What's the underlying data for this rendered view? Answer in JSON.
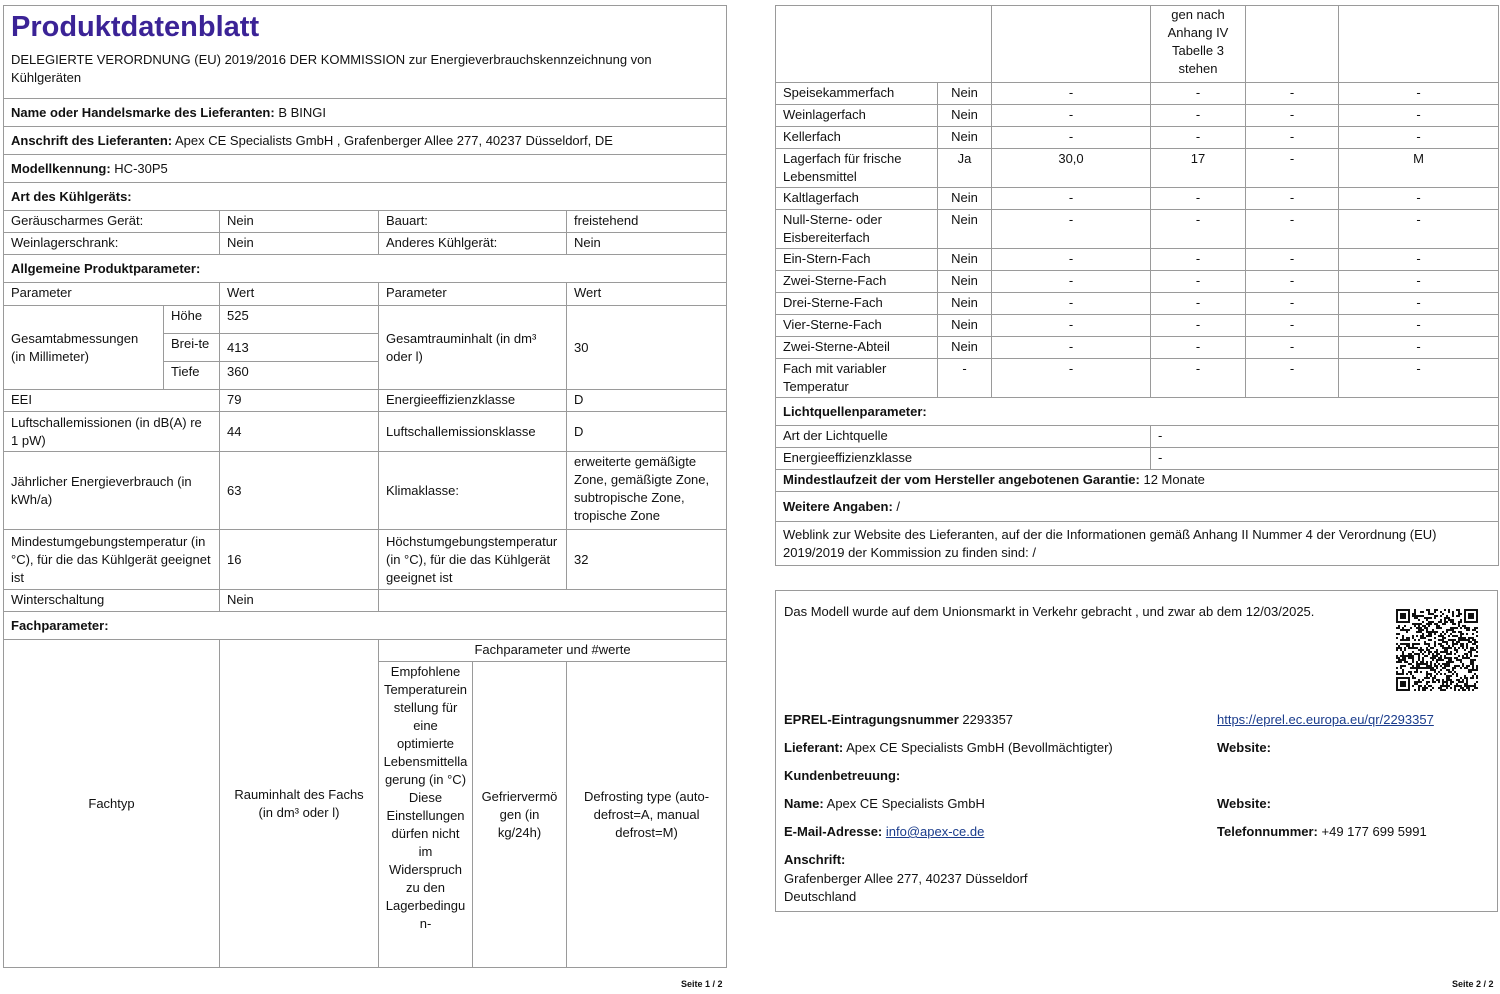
{
  "page1": {
    "title": "Produktdatenblatt",
    "regulation": "DELEGIERTE VERORDNUNG (EU) 2019/2016 DER KOMMISSION zur Energieverbrauchskennzeichnung von Kühlgeräten",
    "supplier_name": {
      "label": "Name oder Handelsmarke des Lieferanten:",
      "value": "B BINGI"
    },
    "supplier_address": {
      "label": "Anschrift des Lieferanten:",
      "value": "Apex CE Specialists GmbH , Grafenberger Allee 277, 40237 Düsseldorf, DE"
    },
    "model": {
      "label": "Modellkennung:",
      "value": "HC-30P5"
    },
    "device_type": {
      "heading": "Art des Kühlgeräts:",
      "rows": [
        [
          "Geräuscharmes Gerät:",
          "Nein",
          "Bauart:",
          "freistehend"
        ],
        [
          "Weinlagerschrank:",
          "Nein",
          "Anderes Kühlgerät:",
          "Nein"
        ]
      ]
    },
    "general": {
      "heading": "Allgemeine Produktparameter:",
      "header": [
        "Parameter",
        "Wert",
        "Parameter",
        "Wert"
      ],
      "dimensions": {
        "label": "Gesamtabmessungen (in Millimeter)",
        "rows": [
          [
            "Höhe",
            "525"
          ],
          [
            "Brei-te",
            "413"
          ],
          [
            "Tiefe",
            "360"
          ]
        ]
      },
      "volume": {
        "label": "Gesamtrauminhalt (in dm³ oder l)",
        "value": "30"
      },
      "rows": [
        [
          "EEI",
          "79",
          "Energieeffizienzklasse",
          "D"
        ],
        [
          "Luftschallemissionen (in dB(A) re 1 pW)",
          "44",
          "Luftschallemissionsklasse",
          "D"
        ],
        [
          "Jährlicher Energieverbrauch (in kWh/a)",
          "63",
          "Klimaklasse:",
          "erweiterte gemäßigte Zone, gemäßigte Zone, subtropische Zone, tropische Zone"
        ],
        [
          "Mindestumgebungstemperatur (in °C), für die das Kühlgerät geeignet ist",
          "16",
          "Höchstumgebungstemperatur (in °C), für die das Kühlgerät geeignet ist",
          "32"
        ]
      ],
      "winter": [
        "Winterschaltung",
        "Nein"
      ]
    },
    "compartments": {
      "heading": "Fachparameter:",
      "group": "Fachparameter und #werte",
      "type": "Fachtyp",
      "volume": "Rauminhalt des Fachs (in dm³ oder l)",
      "temperature": [
        "Empfohlene Temperatureinstellung für eine optimierte Lebensmittellagerung (in °C)",
        "Diese Einstellungen dürfen nicht im Widerspruch zu den Lagerbedingun-"
      ],
      "freezing": "Gefriervermögen (in kg/24h)",
      "defrost": "Defrosting type (auto-defrost=A, manual defrost=M)"
    },
    "footer": "Seite 1 / 2"
  },
  "page2": {
    "temperature_continued": "gen nach Anhang IV Tabelle 3 stehen",
    "compartments": [
      [
        "Speisekammerfach",
        "Nein",
        "-",
        "-",
        "-",
        "-"
      ],
      [
        "Weinlagerfach",
        "Nein",
        "-",
        "-",
        "-",
        "-"
      ],
      [
        "Kellerfach",
        "Nein",
        "-",
        "-",
        "-",
        "-"
      ],
      [
        "Lagerfach für frische Lebensmittel",
        "Ja",
        "30,0",
        "17",
        "-",
        "M"
      ],
      [
        "Kaltlagerfach",
        "Nein",
        "-",
        "-",
        "-",
        "-"
      ],
      [
        "Null-Sterne- oder Eisbereiterfach",
        "Nein",
        "-",
        "-",
        "-",
        "-"
      ],
      [
        "Ein-Stern-Fach",
        "Nein",
        "-",
        "-",
        "-",
        "-"
      ],
      [
        "Zwei-Sterne-Fach",
        "Nein",
        "-",
        "-",
        "-",
        "-"
      ],
      [
        "Drei-Sterne-Fach",
        "Nein",
        "-",
        "-",
        "-",
        "-"
      ],
      [
        "Vier-Sterne-Fach",
        "Nein",
        "-",
        "-",
        "-",
        "-"
      ],
      [
        "Zwei-Sterne-Abteil",
        "Nein",
        "-",
        "-",
        "-",
        "-"
      ],
      [
        "Fach mit variabler Temperatur",
        "-",
        "-",
        "-",
        "-",
        "-"
      ]
    ],
    "light": {
      "heading": "Lichtquellenparameter:",
      "rows": [
        [
          "Art der Lichtquelle",
          "-"
        ],
        [
          "Energieeffizienzklasse",
          "-"
        ]
      ]
    },
    "warranty": {
      "label": "Mindestlaufzeit der vom Hersteller angebotenen Garantie:",
      "value": "12 Monate"
    },
    "further": {
      "label": "Weitere Angaben:",
      "value": "/"
    },
    "weblink": {
      "label": "Weblink zur Website des Lieferanten, auf der die Informationen gemäß Anhang II Nummer 4 der Verordnung (EU) 2019/2019 der Kommission zu finden sind:",
      "value": "/"
    },
    "info": {
      "placed": "Das Modell wurde auf dem Unionsmarkt in Verkehr gebracht , und zwar ab dem 12/03/2025.",
      "eprel": {
        "label": "EPREL-Eintragungsnummer",
        "value": "2293357"
      },
      "eprel_link": "https://eprel.ec.europa.eu/qr/2293357",
      "supplier": {
        "label": "Lieferant:",
        "value": "Apex CE Specialists GmbH (Bevollmächtigter)"
      },
      "supplier_website": "Website:",
      "customer_service": "Kundenbetreuung:",
      "name": {
        "label": "Name:",
        "value": "Apex CE Specialists GmbH"
      },
      "website": "Website:",
      "email": {
        "label": "E-Mail-Adresse:",
        "value": "info@apex-ce.de"
      },
      "phone": {
        "label": "Telefonnummer:",
        "value": "+49 177 699 5991"
      },
      "address": {
        "label": "Anschrift:",
        "lines": [
          "Grafenberger Allee 277, 40237 Düsseldorf",
          "Deutschland"
        ]
      }
    },
    "footer": "Seite 2 / 2"
  }
}
